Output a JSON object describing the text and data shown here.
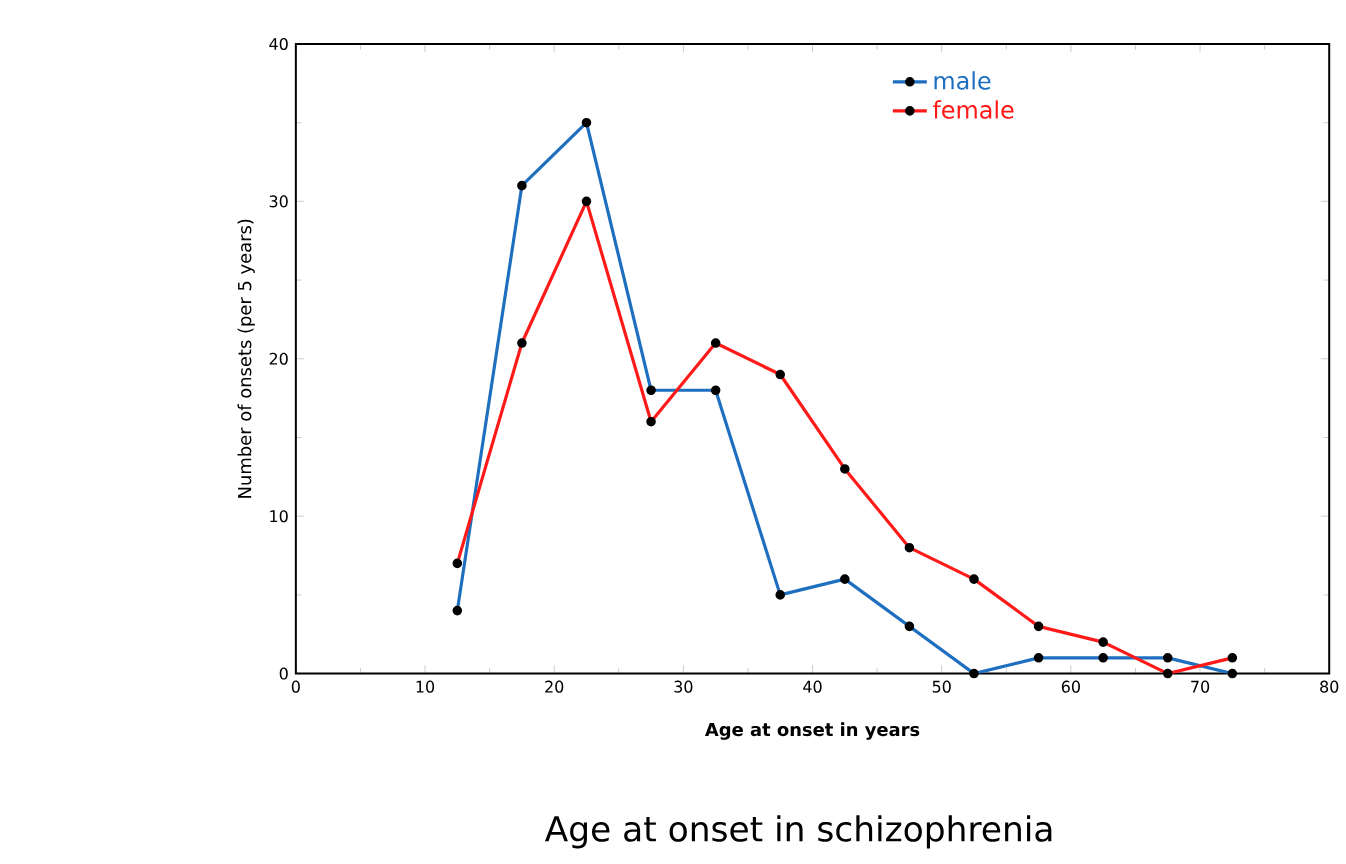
{
  "chart_data": {
    "type": "line",
    "title": "Age at onset in schizophrenia",
    "xlabel": "Age at onset in years",
    "ylabel": "Number of onsets (per 5 years)",
    "x": [
      12.5,
      17.5,
      22.5,
      27.5,
      32.5,
      37.5,
      42.5,
      47.5,
      52.5,
      57.5,
      62.5,
      67.5,
      72.5
    ],
    "series": [
      {
        "name": "male",
        "color": "#1f6fc0",
        "values": [
          4,
          31,
          35,
          18,
          18,
          5,
          6,
          3,
          0,
          1,
          1,
          1,
          0
        ]
      },
      {
        "name": "female",
        "color": "#ff1a1a",
        "values": [
          7,
          21,
          30,
          16,
          21,
          19,
          13,
          8,
          6,
          3,
          2,
          0,
          1
        ]
      }
    ],
    "xlim": [
      0,
      80
    ],
    "xticks": [
      0,
      10,
      20,
      30,
      40,
      50,
      60,
      70,
      80
    ],
    "ylim": [
      0,
      40
    ],
    "yticks": [
      0,
      10,
      20,
      30,
      40
    ],
    "legend": "top right",
    "marker": "circle",
    "line_style": "solid",
    "grid": false
  }
}
